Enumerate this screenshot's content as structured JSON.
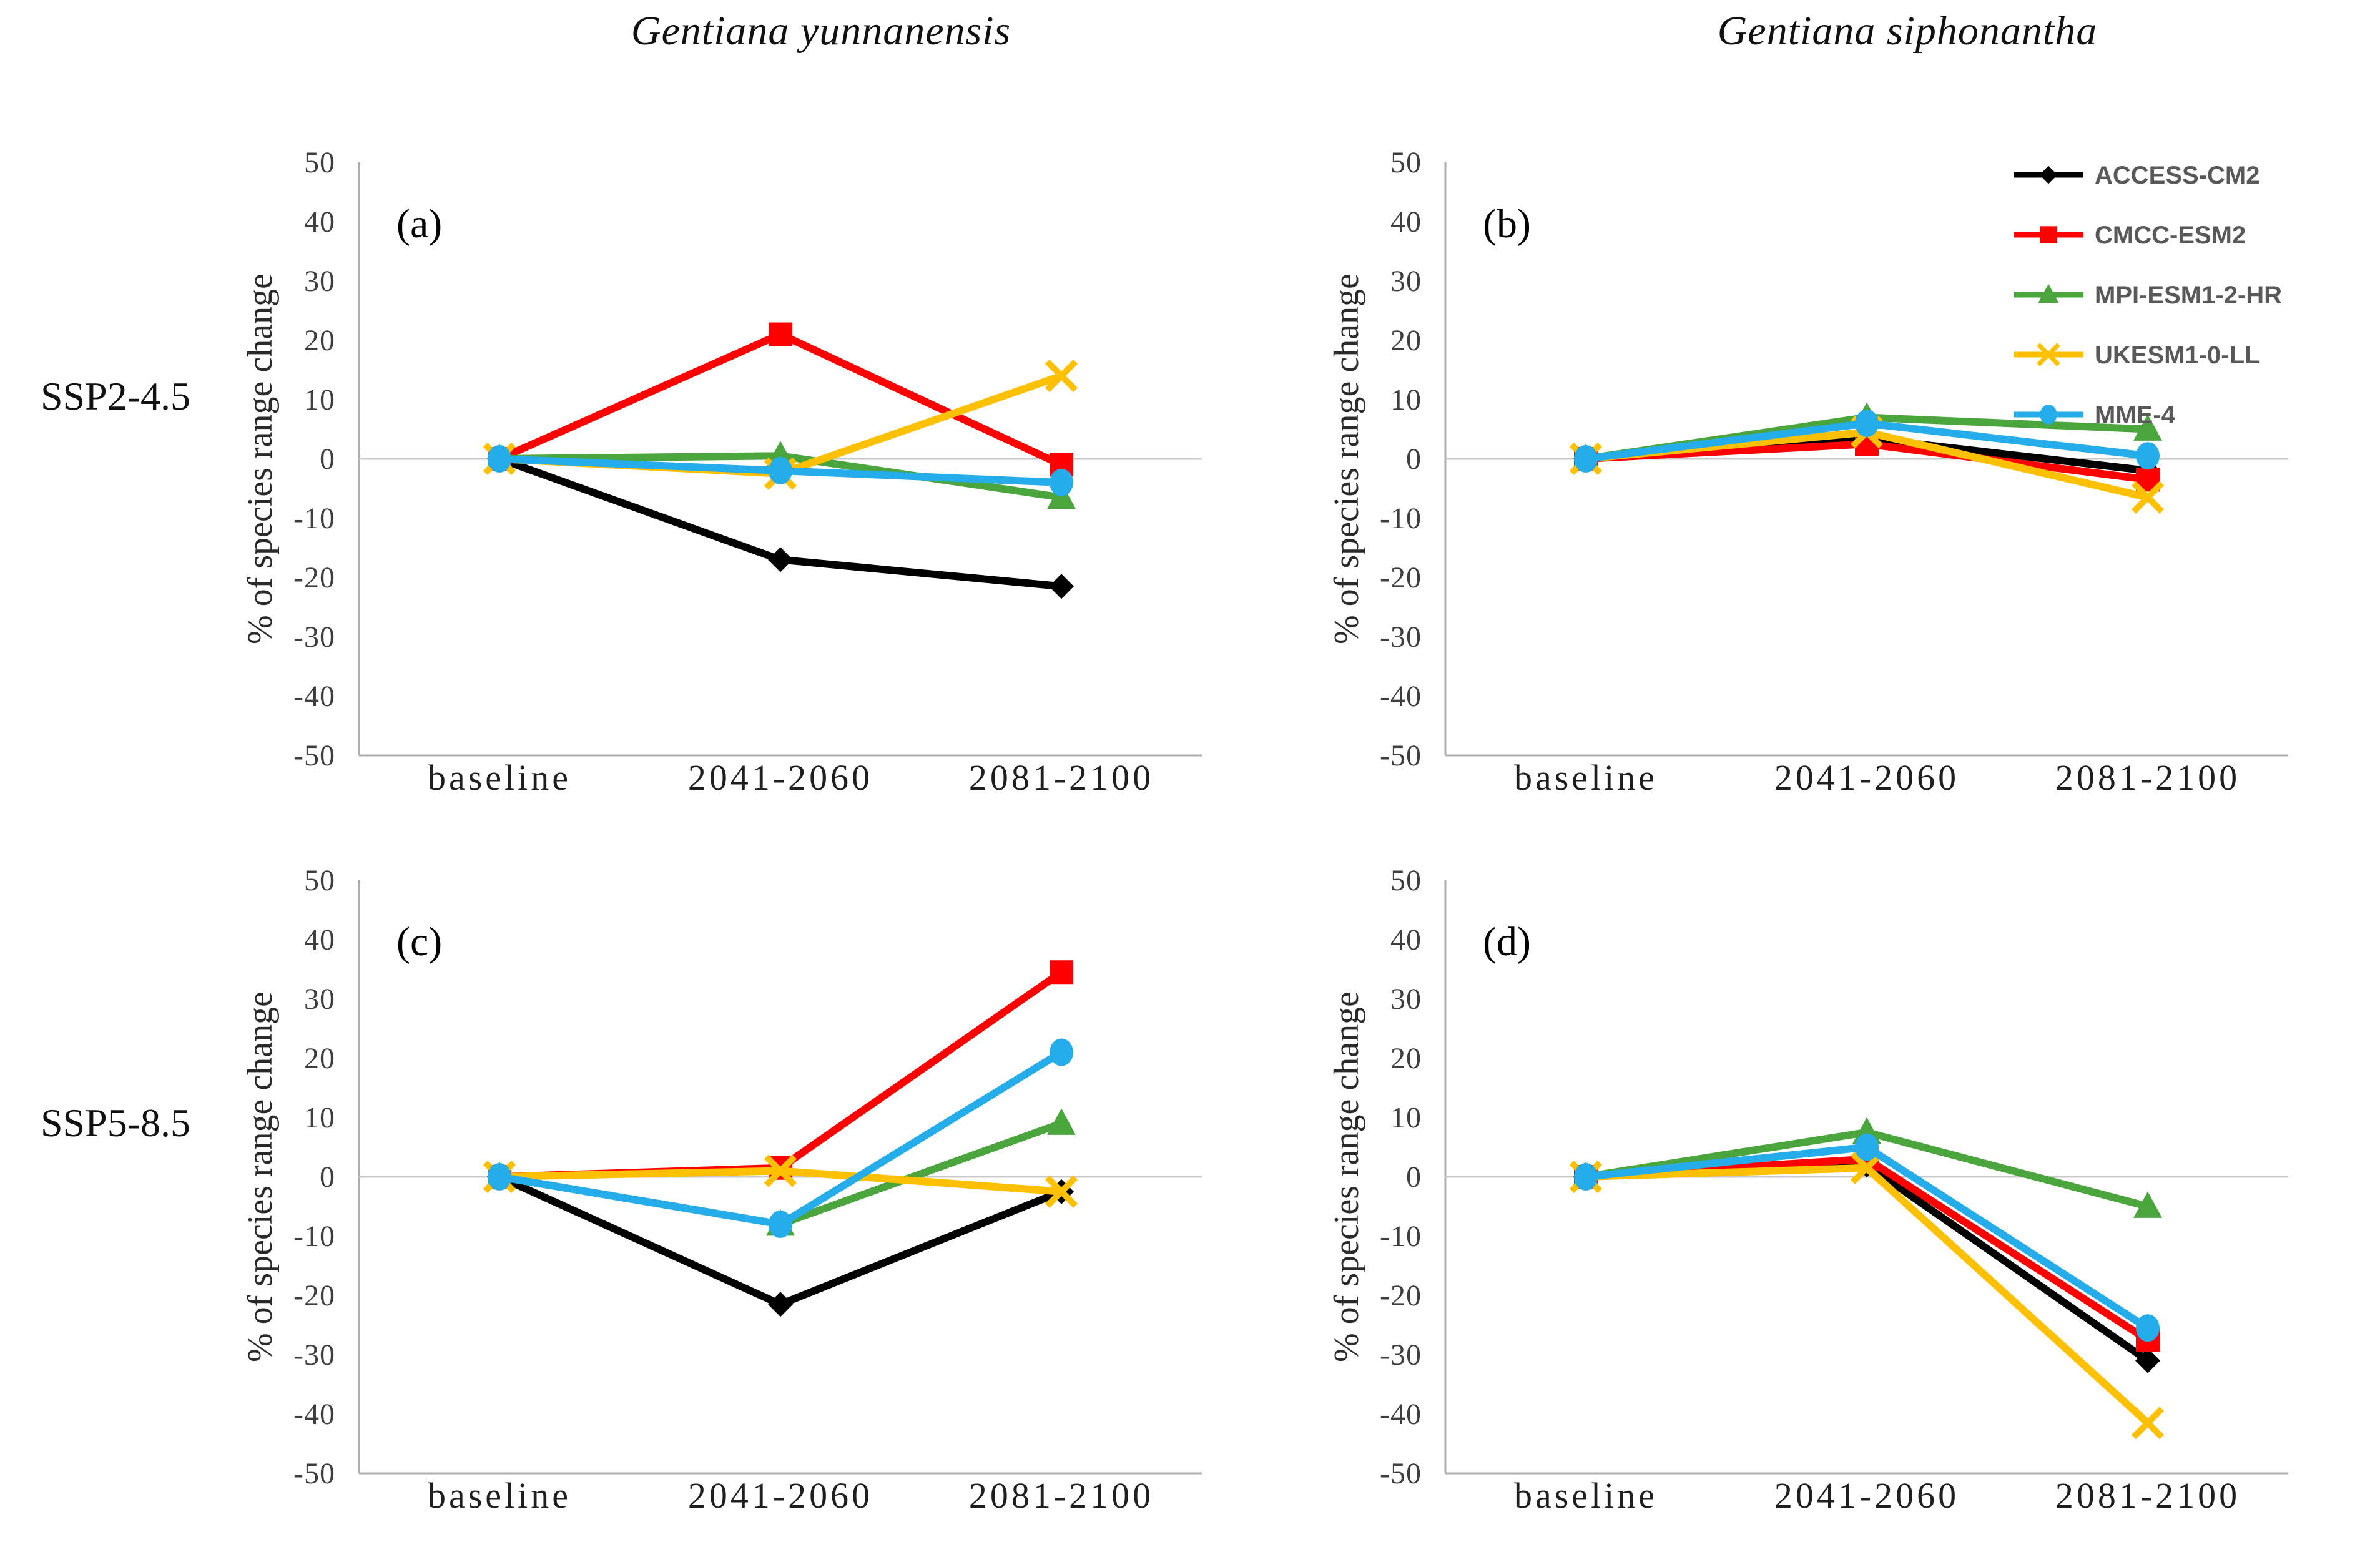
{
  "titles": {
    "left": "Gentiana yunnanensis",
    "right": "Gentiana siphonantha"
  },
  "rows": {
    "top": "SSP2-4.5",
    "bottom": "SSP5-8.5"
  },
  "y_axis_label": "% of species range change",
  "legend": {
    "position": "top-right",
    "text_color": "#595959",
    "entries": [
      {
        "label": "ACCESS-CM2",
        "color": "#000000",
        "marker": "diamond"
      },
      {
        "label": "CMCC-ESM2",
        "color": "#ff0000",
        "marker": "square"
      },
      {
        "label": "MPI-ESM1-2-HR",
        "color": "#4aa53c",
        "marker": "triangle"
      },
      {
        "label": "UKESM1-0-LL",
        "color": "#ffc000",
        "marker": "x"
      },
      {
        "label": "MME-4",
        "color": "#25acea",
        "marker": "circle"
      }
    ]
  },
  "chart_data": [
    {
      "type": "line",
      "panel_label": "(a)",
      "species": "Gentiana yunnanensis",
      "scenario": "SSP2-4.5",
      "categories": [
        "baseline",
        "2041-2060",
        "2081-2100"
      ],
      "ylabel": "% of species range change",
      "ylim": [
        -50,
        50
      ],
      "ytick_step": 10,
      "grid": "zero-line-only",
      "show_legend": false,
      "series": [
        {
          "name": "ACCESS-CM2",
          "color": "#000000",
          "marker": "diamond",
          "values": [
            0,
            -17,
            -21.5
          ]
        },
        {
          "name": "CMCC-ESM2",
          "color": "#ff0000",
          "marker": "square",
          "values": [
            0,
            21,
            -1
          ]
        },
        {
          "name": "MPI-ESM1-2-HR",
          "color": "#4aa53c",
          "marker": "triangle",
          "values": [
            0,
            0.5,
            -6.5
          ]
        },
        {
          "name": "UKESM1-0-LL",
          "color": "#ffc000",
          "marker": "x",
          "values": [
            0,
            -2.5,
            14
          ]
        },
        {
          "name": "MME-4",
          "color": "#25acea",
          "marker": "circle",
          "values": [
            0,
            -2,
            -4
          ]
        }
      ]
    },
    {
      "type": "line",
      "panel_label": "(b)",
      "species": "Gentiana siphonantha",
      "scenario": "SSP2-4.5",
      "categories": [
        "baseline",
        "2041-2060",
        "2081-2100"
      ],
      "ylabel": "% of species range change",
      "ylim": [
        -50,
        50
      ],
      "ytick_step": 10,
      "grid": "zero-line-only",
      "show_legend": true,
      "series": [
        {
          "name": "ACCESS-CM2",
          "color": "#000000",
          "marker": "diamond",
          "values": [
            0,
            3.5,
            -2
          ]
        },
        {
          "name": "CMCC-ESM2",
          "color": "#ff0000",
          "marker": "square",
          "values": [
            0,
            2.5,
            -3.5
          ]
        },
        {
          "name": "MPI-ESM1-2-HR",
          "color": "#4aa53c",
          "marker": "triangle",
          "values": [
            0,
            7,
            5
          ]
        },
        {
          "name": "UKESM1-0-LL",
          "color": "#ffc000",
          "marker": "x",
          "values": [
            0,
            4.5,
            -6.5
          ]
        },
        {
          "name": "MME-4",
          "color": "#25acea",
          "marker": "circle",
          "values": [
            0,
            6,
            0.5
          ]
        }
      ]
    },
    {
      "type": "line",
      "panel_label": "(c)",
      "species": "Gentiana yunnanensis",
      "scenario": "SSP5-8.5",
      "categories": [
        "baseline",
        "2041-2060",
        "2081-2100"
      ],
      "ylabel": "% of species range change",
      "ylim": [
        -50,
        50
      ],
      "ytick_step": 10,
      "grid": "zero-line-only",
      "show_legend": false,
      "series": [
        {
          "name": "ACCESS-CM2",
          "color": "#000000",
          "marker": "diamond",
          "values": [
            0,
            -21.5,
            -2.5
          ]
        },
        {
          "name": "CMCC-ESM2",
          "color": "#ff0000",
          "marker": "square",
          "values": [
            0,
            1.5,
            34.5
          ]
        },
        {
          "name": "MPI-ESM1-2-HR",
          "color": "#4aa53c",
          "marker": "triangle",
          "values": [
            0,
            -8,
            9
          ]
        },
        {
          "name": "UKESM1-0-LL",
          "color": "#ffc000",
          "marker": "x",
          "values": [
            0,
            1,
            -2.5
          ]
        },
        {
          "name": "MME-4",
          "color": "#25acea",
          "marker": "circle",
          "values": [
            0,
            -8,
            21
          ]
        }
      ]
    },
    {
      "type": "line",
      "panel_label": "(d)",
      "species": "Gentiana siphonantha",
      "scenario": "SSP5-8.5",
      "categories": [
        "baseline",
        "2041-2060",
        "2081-2100"
      ],
      "ylabel": "% of species range change",
      "ylim": [
        -50,
        50
      ],
      "ytick_step": 10,
      "grid": "zero-line-only",
      "show_legend": false,
      "series": [
        {
          "name": "ACCESS-CM2",
          "color": "#000000",
          "marker": "diamond",
          "values": [
            0,
            2,
            -31
          ]
        },
        {
          "name": "CMCC-ESM2",
          "color": "#ff0000",
          "marker": "square",
          "values": [
            0,
            3,
            -27.5
          ]
        },
        {
          "name": "MPI-ESM1-2-HR",
          "color": "#4aa53c",
          "marker": "triangle",
          "values": [
            0,
            7.5,
            -5
          ]
        },
        {
          "name": "UKESM1-0-LL",
          "color": "#ffc000",
          "marker": "x",
          "values": [
            0,
            1.5,
            -41.5
          ]
        },
        {
          "name": "MME-4",
          "color": "#25acea",
          "marker": "circle",
          "values": [
            0,
            5,
            -25.5
          ]
        }
      ]
    }
  ]
}
